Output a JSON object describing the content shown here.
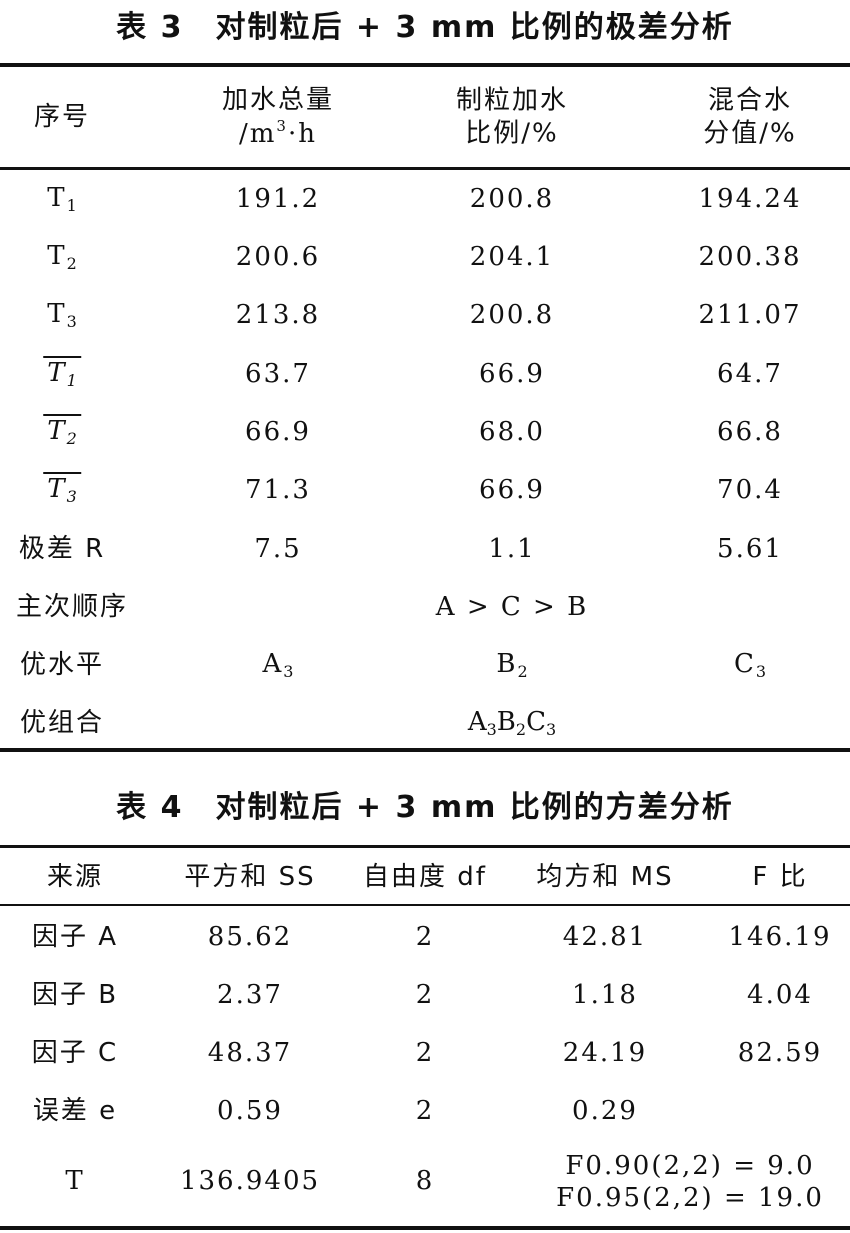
{
  "table3": {
    "title": "表 3　对制粒后 + 3 mm 比例的极差分析",
    "headers": [
      {
        "line1": "序号",
        "line2": ""
      },
      {
        "line1": "加水总量",
        "line2_pre": "/m",
        "line2_sup": "3",
        "line2_post": "·h"
      },
      {
        "line1": "制粒加水",
        "line2": "比例/%"
      },
      {
        "line1": "混合水",
        "line2": "分值/%"
      }
    ],
    "rows": [
      {
        "base": "T",
        "sub": "1",
        "overline": false,
        "values": [
          "191.2",
          "200.8",
          "194.24"
        ]
      },
      {
        "base": "T",
        "sub": "2",
        "overline": false,
        "values": [
          "200.6",
          "204.1",
          "200.38"
        ]
      },
      {
        "base": "T",
        "sub": "3",
        "overline": false,
        "values": [
          "213.8",
          "200.8",
          "211.07"
        ]
      },
      {
        "base": "T",
        "sub": "1",
        "overline": true,
        "values": [
          "63.7",
          "66.9",
          "64.7"
        ]
      },
      {
        "base": "T",
        "sub": "2",
        "overline": true,
        "values": [
          "66.9",
          "68.0",
          "66.8"
        ]
      },
      {
        "base": "T",
        "sub": "3",
        "overline": true,
        "values": [
          "71.3",
          "66.9",
          "70.4"
        ]
      }
    ],
    "range": {
      "label": "极差 R",
      "values": [
        "7.5",
        "1.1",
        "5.61"
      ]
    },
    "order": {
      "label": "主次顺序",
      "value": "A > C > B"
    },
    "optimal_level": {
      "label": "优水平",
      "values": [
        {
          "base": "A",
          "sub": "3"
        },
        {
          "base": "B",
          "sub": "2"
        },
        {
          "base": "C",
          "sub": "3"
        }
      ]
    },
    "optimal_combo": {
      "label": "优组合",
      "parts": [
        {
          "base": "A",
          "sub": "3"
        },
        {
          "base": "B",
          "sub": "2"
        },
        {
          "base": "C",
          "sub": "3"
        }
      ]
    }
  },
  "table4": {
    "title": "表 4　对制粒后 + 3 mm 比例的方差分析",
    "headers": [
      "来源",
      "平方和 SS",
      "自由度 df",
      "均方和 MS",
      "F 比"
    ],
    "rows": [
      [
        "因子 A",
        "85.62",
        "2",
        "42.81",
        "146.19"
      ],
      [
        "因子 B",
        "2.37",
        "2",
        "1.18",
        "4.04"
      ],
      [
        "因子 C",
        "48.37",
        "2",
        "24.19",
        "82.59"
      ],
      [
        "误差 e",
        "0.59",
        "2",
        "0.29",
        ""
      ]
    ],
    "total": {
      "label": "T",
      "ss": "136.9405",
      "df": "8",
      "note1": "F0.90(2,2) = 9.0",
      "note2": "F0.95(2,2) = 19.0"
    }
  }
}
